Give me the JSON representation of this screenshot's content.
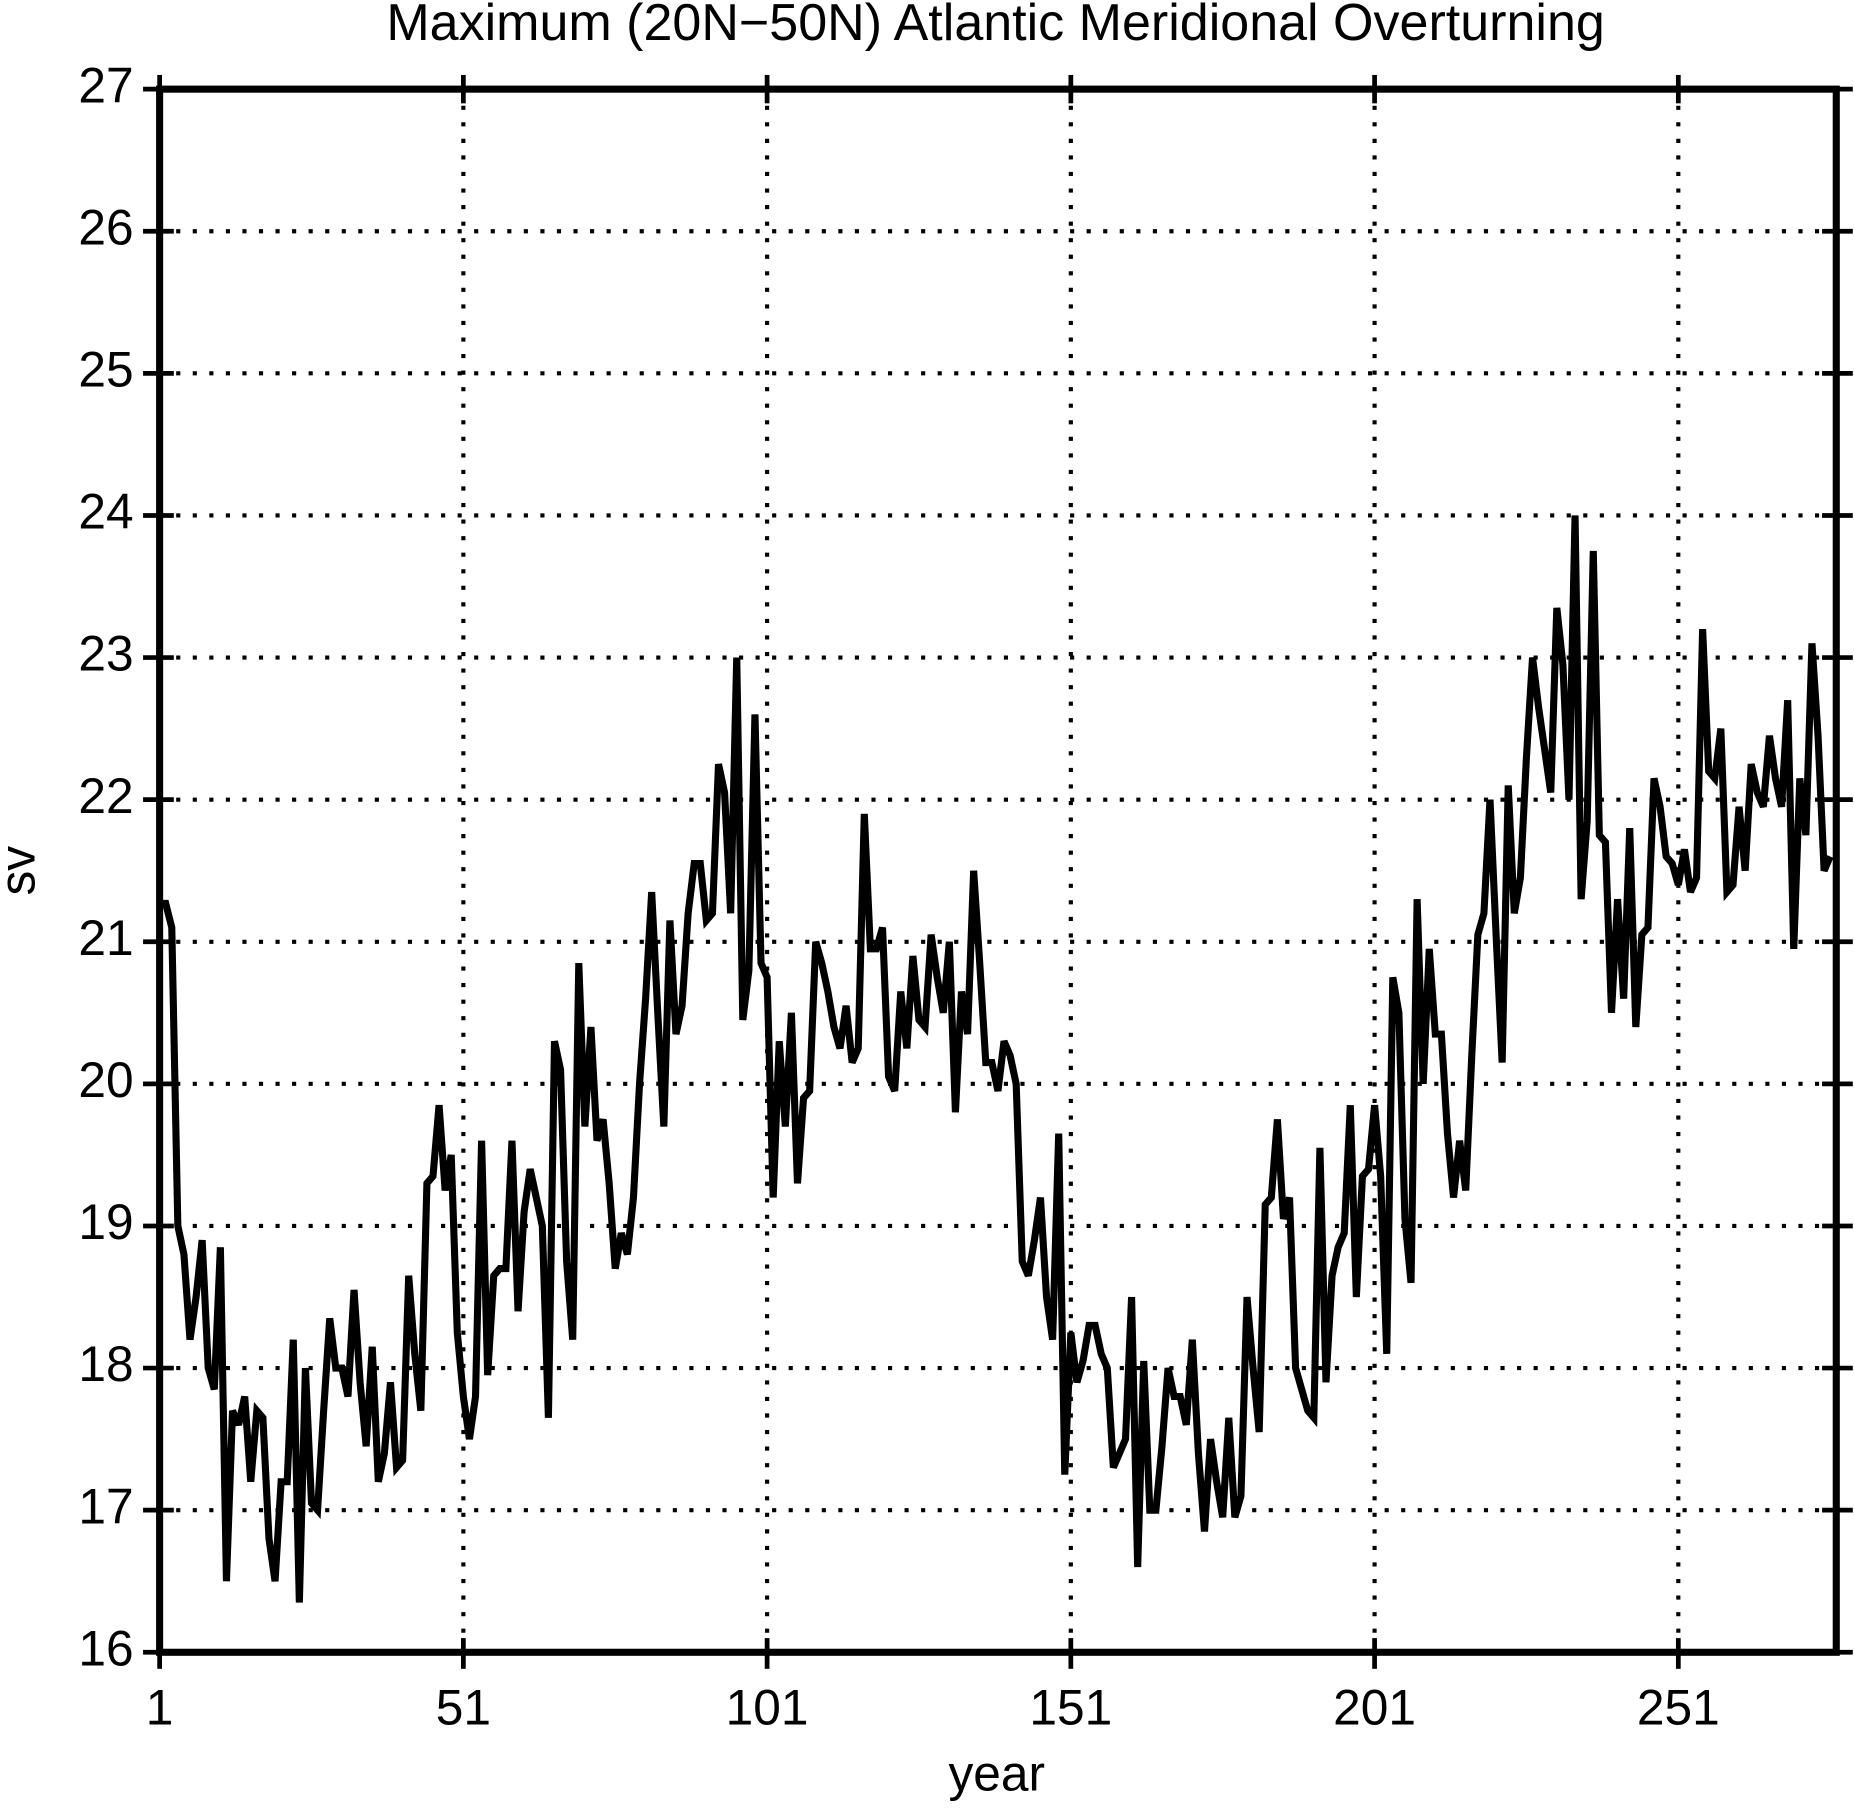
{
  "chart_data": {
    "type": "line",
    "title": "Maximum (20N−50N) Atlantic Meridional Overturning",
    "xlabel": "year",
    "ylabel": "sv",
    "color": "#000000",
    "grid": true,
    "xlim": [
      1,
      277
    ],
    "xticks": [
      1,
      51,
      101,
      151,
      201,
      251
    ],
    "ylim": [
      16,
      27
    ],
    "yticks": [
      16,
      17,
      18,
      19,
      20,
      21,
      22,
      23,
      24,
      25,
      26,
      27
    ],
    "x": [
      1,
      2,
      3,
      4,
      5,
      6,
      7,
      8,
      9,
      10,
      11,
      12,
      13,
      14,
      15,
      16,
      17,
      18,
      19,
      20,
      21,
      22,
      23,
      24,
      25,
      26,
      27,
      28,
      29,
      30,
      31,
      32,
      33,
      34,
      35,
      36,
      37,
      38,
      39,
      40,
      41,
      42,
      43,
      44,
      45,
      46,
      47,
      48,
      49,
      50,
      51,
      52,
      53,
      54,
      55,
      56,
      57,
      58,
      59,
      60,
      61,
      62,
      63,
      64,
      65,
      66,
      67,
      68,
      69,
      70,
      71,
      72,
      73,
      74,
      75,
      76,
      77,
      78,
      79,
      80,
      81,
      82,
      83,
      84,
      85,
      86,
      87,
      88,
      89,
      90,
      91,
      92,
      93,
      94,
      95,
      96,
      97,
      98,
      99,
      100,
      101,
      102,
      103,
      104,
      105,
      106,
      107,
      108,
      109,
      110,
      111,
      112,
      113,
      114,
      115,
      116,
      117,
      118,
      119,
      120,
      121,
      122,
      123,
      124,
      125,
      126,
      127,
      128,
      129,
      130,
      131,
      132,
      133,
      134,
      135,
      136,
      137,
      138,
      139,
      140,
      141,
      142,
      143,
      144,
      145,
      146,
      147,
      148,
      149,
      150,
      151,
      152,
      153,
      154,
      155,
      156,
      157,
      158,
      159,
      160,
      161,
      162,
      163,
      164,
      165,
      166,
      167,
      168,
      169,
      170,
      171,
      172,
      173,
      174,
      175,
      176,
      177,
      178,
      179,
      180,
      181,
      182,
      183,
      184,
      185,
      186,
      187,
      188,
      189,
      190,
      191,
      192,
      193,
      194,
      195,
      196,
      197,
      198,
      199,
      200,
      201,
      202,
      203,
      204,
      205,
      206,
      207,
      208,
      209,
      210,
      211,
      212,
      213,
      214,
      215,
      216,
      217,
      218,
      219,
      220,
      221,
      222,
      223,
      224,
      225,
      226,
      227,
      228,
      229,
      230,
      231,
      232,
      233,
      234,
      235,
      236,
      237,
      238,
      239,
      240,
      241,
      242,
      243,
      244,
      245,
      246,
      247,
      248,
      249,
      250,
      251,
      252,
      253,
      254,
      255,
      256,
      257,
      258,
      259,
      260,
      261,
      262,
      263,
      264,
      265,
      266,
      267,
      268,
      269,
      270,
      271,
      272,
      273,
      274,
      275,
      276
    ],
    "values": [
      21.27,
      21.27,
      21.1,
      19.0,
      18.8,
      18.2,
      18.5,
      18.9,
      18.0,
      17.85,
      18.85,
      16.5,
      17.7,
      17.6,
      17.8,
      17.2,
      17.7,
      17.65,
      16.8,
      16.5,
      17.2,
      17.2,
      18.2,
      16.35,
      18.0,
      17.05,
      17.0,
      17.7,
      18.35,
      18.0,
      18.0,
      17.8,
      18.55,
      17.9,
      17.45,
      18.15,
      17.2,
      17.4,
      17.9,
      17.3,
      17.35,
      18.65,
      18.1,
      17.7,
      19.3,
      19.35,
      19.85,
      19.25,
      19.5,
      18.25,
      17.8,
      17.5,
      17.8,
      19.6,
      17.95,
      18.65,
      18.7,
      18.7,
      19.6,
      18.4,
      19.1,
      19.4,
      19.2,
      19.0,
      17.65,
      20.3,
      20.1,
      18.75,
      18.2,
      20.85,
      19.7,
      20.4,
      19.6,
      19.75,
      19.3,
      18.7,
      18.95,
      18.8,
      19.2,
      20.0,
      20.6,
      21.35,
      20.5,
      19.7,
      21.15,
      20.35,
      20.55,
      21.2,
      21.55,
      21.55,
      21.15,
      21.2,
      22.25,
      22.05,
      21.2,
      23.0,
      20.45,
      20.8,
      22.6,
      20.85,
      20.75,
      19.2,
      20.3,
      19.7,
      20.5,
      19.3,
      19.9,
      19.95,
      21.0,
      20.85,
      20.65,
      20.4,
      20.25,
      20.55,
      20.15,
      20.25,
      21.9,
      20.95,
      20.95,
      21.1,
      20.05,
      19.95,
      20.65,
      20.25,
      20.9,
      20.45,
      20.4,
      21.05,
      20.75,
      20.5,
      21.0,
      19.8,
      20.65,
      20.35,
      21.5,
      20.85,
      20.15,
      20.15,
      19.95,
      20.3,
      20.2,
      20.0,
      18.75,
      18.65,
      18.9,
      19.2,
      18.5,
      18.2,
      19.65,
      17.25,
      18.25,
      17.9,
      18.05,
      18.3,
      18.3,
      18.1,
      18.0,
      17.3,
      17.4,
      17.5,
      18.5,
      16.6,
      18.05,
      17.0,
      17.0,
      17.45,
      18.0,
      17.8,
      17.8,
      17.6,
      18.2,
      17.4,
      16.85,
      17.5,
      17.2,
      16.95,
      17.65,
      16.95,
      17.1,
      18.5,
      18.0,
      17.55,
      19.15,
      19.2,
      19.75,
      19.05,
      19.2,
      18.0,
      17.85,
      17.7,
      17.65,
      19.55,
      17.9,
      18.65,
      18.85,
      18.95,
      19.85,
      18.5,
      19.35,
      19.4,
      19.85,
      19.35,
      18.1,
      20.75,
      20.5,
      19.05,
      18.6,
      21.3,
      20.0,
      20.95,
      20.35,
      20.35,
      19.65,
      19.2,
      19.6,
      19.25,
      20.2,
      21.05,
      21.2,
      22.0,
      21.05,
      20.15,
      22.1,
      21.2,
      21.45,
      22.3,
      23.0,
      22.65,
      22.35,
      22.05,
      23.35,
      22.95,
      22.0,
      24.0,
      21.3,
      21.85,
      23.75,
      21.75,
      21.7,
      20.5,
      21.3,
      20.6,
      21.8,
      20.4,
      21.05,
      21.1,
      22.15,
      21.95,
      21.6,
      21.55,
      21.4,
      21.65,
      21.35,
      21.45,
      23.2,
      22.2,
      22.15,
      22.5,
      21.35,
      21.4,
      21.95,
      21.5,
      22.25,
      22.05,
      21.95,
      22.45,
      22.15,
      21.95,
      22.7,
      20.95,
      22.15,
      21.75,
      23.1,
      22.45,
      21.5,
      21.6
    ]
  }
}
